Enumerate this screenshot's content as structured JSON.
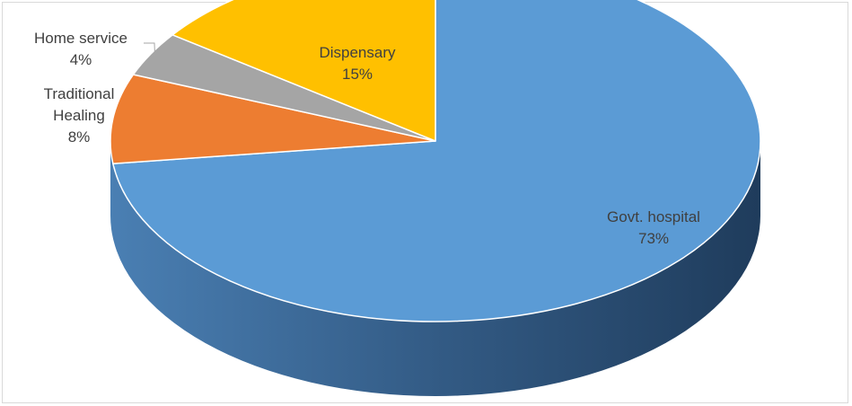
{
  "chart_data": {
    "type": "pie",
    "style": "3d",
    "categories": [
      "Govt. hospital",
      "Traditional Healing",
      "Home service",
      "Dispensary"
    ],
    "values": [
      73,
      8,
      4,
      15
    ],
    "labels": [
      {
        "name": "Govt. hospital",
        "percent": "73%"
      },
      {
        "name": "Traditional Healing",
        "name_lines": [
          "Traditional",
          "Healing"
        ],
        "percent": "8%"
      },
      {
        "name": "Home service",
        "percent": "4%"
      },
      {
        "name": "Dispensary",
        "percent": "15%"
      }
    ],
    "colors": [
      "#5b9bd5",
      "#ed7d31",
      "#a5a5a5",
      "#ffc000"
    ],
    "side_colors": [
      "#3f6e98",
      "#a85722",
      "#757575",
      "#b38600"
    ],
    "title": "",
    "legend": "none"
  }
}
